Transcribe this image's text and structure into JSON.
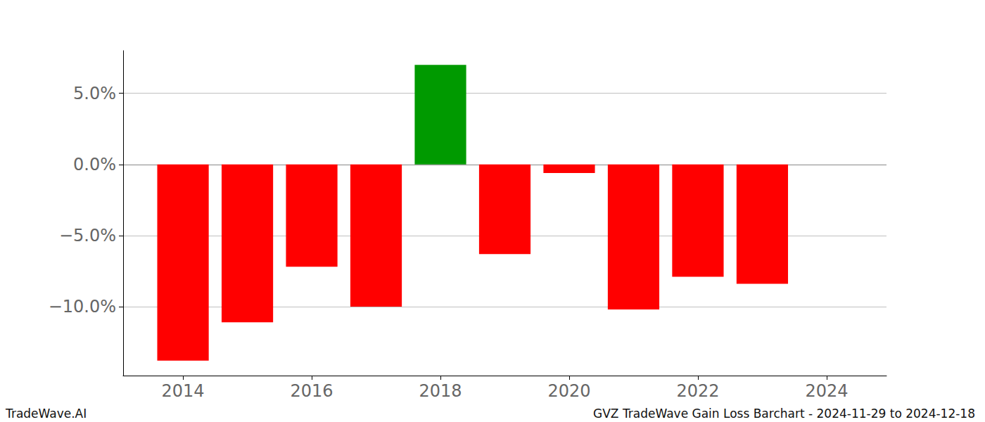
{
  "chart_data": {
    "type": "bar",
    "title": "GVZ TradeWave Gain Loss Barchart - 2024-11-29 to 2024-12-18",
    "source": "TradeWave.AI",
    "x": [
      2014,
      2015,
      2016,
      2017,
      2018,
      2019,
      2020,
      2021,
      2022,
      2023
    ],
    "values": [
      -13.8,
      -11.1,
      -7.2,
      -10.0,
      7.0,
      -6.3,
      -0.6,
      -10.2,
      -7.9,
      -8.4
    ],
    "colors": [
      "#ff0000",
      "#ff0000",
      "#ff0000",
      "#ff0000",
      "#009a00",
      "#ff0000",
      "#ff0000",
      "#ff0000",
      "#ff0000",
      "#ff0000"
    ],
    "xlim": [
      2013.07,
      2024.93
    ],
    "xticks": [
      2014,
      2016,
      2018,
      2020,
      2022,
      2024
    ],
    "ylim": [
      -14.85,
      8.0
    ],
    "yticks": [
      {
        "value": -10,
        "label": "−10.0%"
      },
      {
        "value": -5,
        "label": "−5.0%"
      },
      {
        "value": 0,
        "label": "0.0%"
      },
      {
        "value": 5,
        "label": "5.0%"
      }
    ],
    "grid": true
  }
}
